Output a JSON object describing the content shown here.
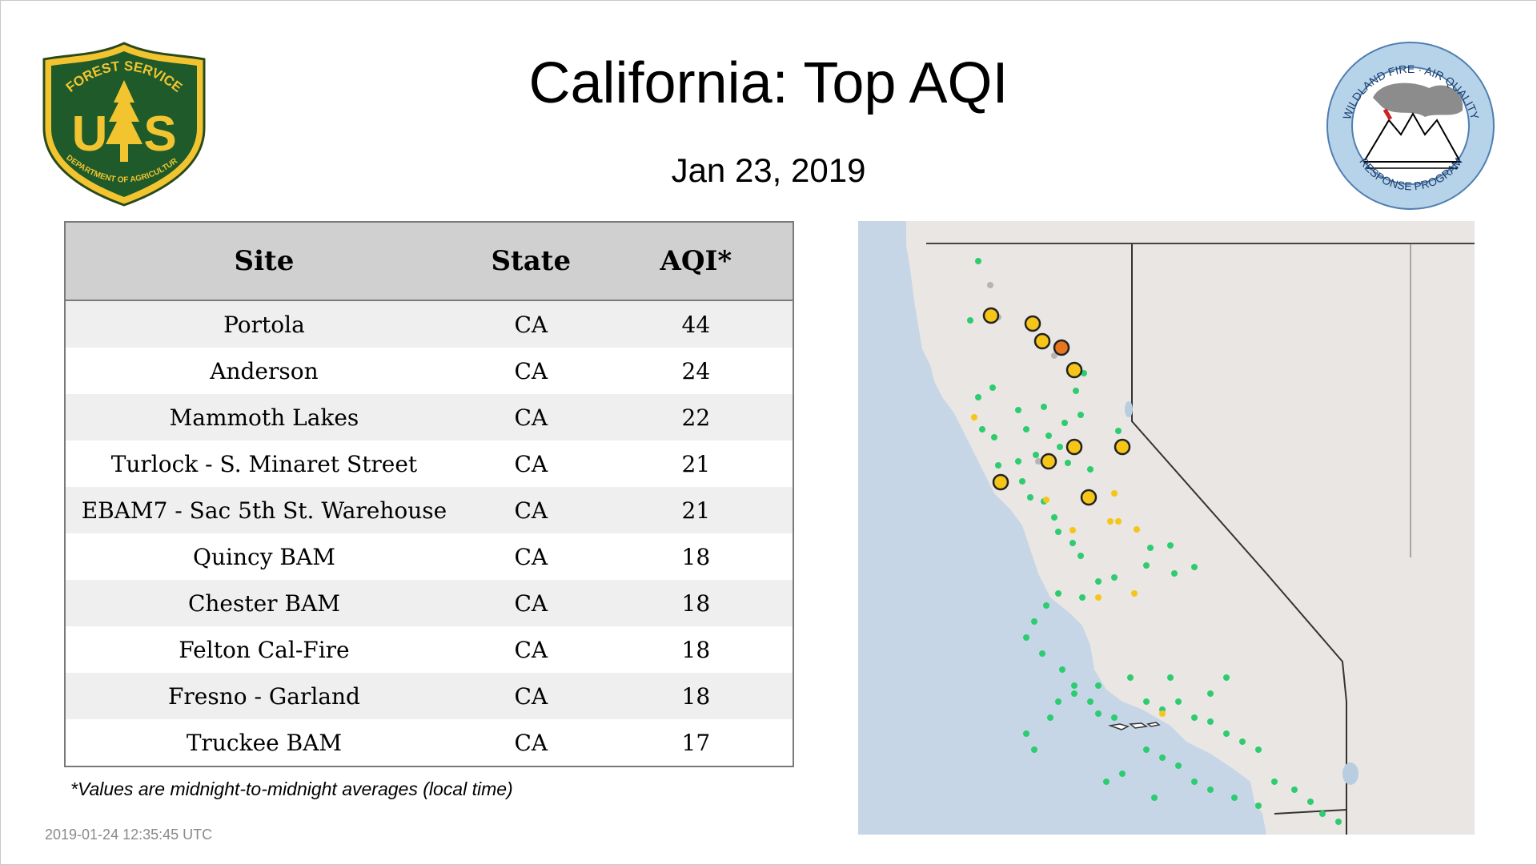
{
  "header": {
    "title": "California: Top AQI",
    "date": "Jan 23, 2019"
  },
  "logos": {
    "left": {
      "icon": "forest-service-shield-icon",
      "top_text": "FOREST SERVICE",
      "letters": "U S",
      "bottom_text": "DEPARTMENT OF AGRICULTURE"
    },
    "right": {
      "icon": "wildland-fire-air-quality-logo-icon",
      "top_text": "WILDLAND FIRE · AIR QUALITY",
      "bottom_text": "RESPONSE PROGRAM"
    }
  },
  "table": {
    "headers": {
      "site": "Site",
      "state": "State",
      "aqi": "AQI*"
    },
    "rows": [
      {
        "site": "Portola",
        "state": "CA",
        "aqi": "44"
      },
      {
        "site": "Anderson",
        "state": "CA",
        "aqi": "24"
      },
      {
        "site": "Mammoth Lakes",
        "state": "CA",
        "aqi": "22"
      },
      {
        "site": "Turlock - S. Minaret Street",
        "state": "CA",
        "aqi": "21"
      },
      {
        "site": "EBAM7 - Sac 5th St. Warehouse",
        "state": "CA",
        "aqi": "21"
      },
      {
        "site": "Quincy BAM",
        "state": "CA",
        "aqi": "18"
      },
      {
        "site": "Chester BAM",
        "state": "CA",
        "aqi": "18"
      },
      {
        "site": "Felton Cal-Fire",
        "state": "CA",
        "aqi": "18"
      },
      {
        "site": "Fresno - Garland",
        "state": "CA",
        "aqi": "18"
      },
      {
        "site": "Truckee BAM",
        "state": "CA",
        "aqi": "17"
      }
    ]
  },
  "footnote": "*Values are midnight-to-midnight averages (local time)",
  "timestamp": "2019-01-24 12:35:45 UTC",
  "map": {
    "colors": {
      "ocean": "#c6d6e6",
      "land": "#e9e6e3",
      "good": "#2ecc71",
      "moderate": "#f5c518",
      "usg": "#e8761e",
      "nodata": "#b5b5b5",
      "border": "#333333"
    }
  }
}
